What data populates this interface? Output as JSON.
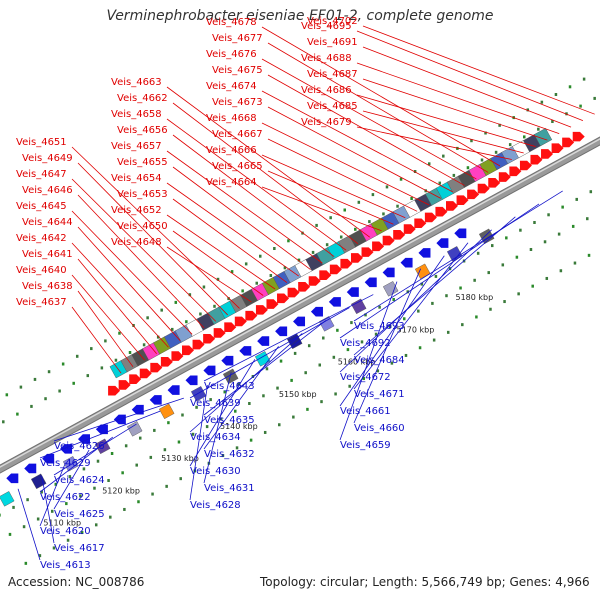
{
  "title": "Verminephrobacter eiseniae EF01-2, complete genome",
  "footer": {
    "accession": "Accession: NC_008786",
    "summary": "Topology: circular; Length: 5,566,749 bp; Genes: 4,966"
  },
  "colors": {
    "forward_label": "#e00000",
    "reverse_label": "#1010c8",
    "backbone": "#9a9a9a"
  },
  "ticks": [
    "5110 kbp",
    "5120 kbp",
    "5130 kbp",
    "5140 kbp",
    "5150 kbp",
    "5160 kbp",
    "5170 kbp",
    "5180 kbp"
  ],
  "forward_labels": [
    "Veis_4637",
    "Veis_4638",
    "Veis_4640",
    "Veis_4641",
    "Veis_4642",
    "Veis_4644",
    "Veis_4645",
    "Veis_4646",
    "Veis_4647",
    "Veis_4649",
    "Veis_4651",
    "Veis_4648",
    "Veis_4650",
    "Veis_4652",
    "Veis_4653",
    "Veis_4654",
    "Veis_4655",
    "Veis_4657",
    "Veis_4656",
    "Veis_4658",
    "Veis_4662",
    "Veis_4663",
    "Veis_4664",
    "Veis_4665",
    "Veis_4666",
    "Veis_4667",
    "Veis_4668",
    "Veis_4673",
    "Veis_4674",
    "Veis_4675",
    "Veis_4676",
    "Veis_4677",
    "Veis_4678",
    "Veis_4679",
    "Veis_4685",
    "Veis_4686",
    "Veis_4687",
    "Veis_4688",
    "Veis_4691",
    "Veis_4695",
    "Veis_4702"
  ],
  "reverse_labels": [
    "Veis_4613",
    "Veis_4617",
    "Veis_4620",
    "Veis_4625",
    "Veis_4622",
    "Veis_4624",
    "Veis_4629",
    "Veis_4626",
    "Veis_4628",
    "Veis_4631",
    "Veis_4630",
    "Veis_4632",
    "Veis_4634",
    "Veis_4635",
    "Veis_4639",
    "Veis_4643",
    "Veis_4659",
    "Veis_4660",
    "Veis_4661",
    "Veis_4671",
    "Veis_4672",
    "Veis_4684",
    "Veis_4692",
    "Veis_4693"
  ]
}
